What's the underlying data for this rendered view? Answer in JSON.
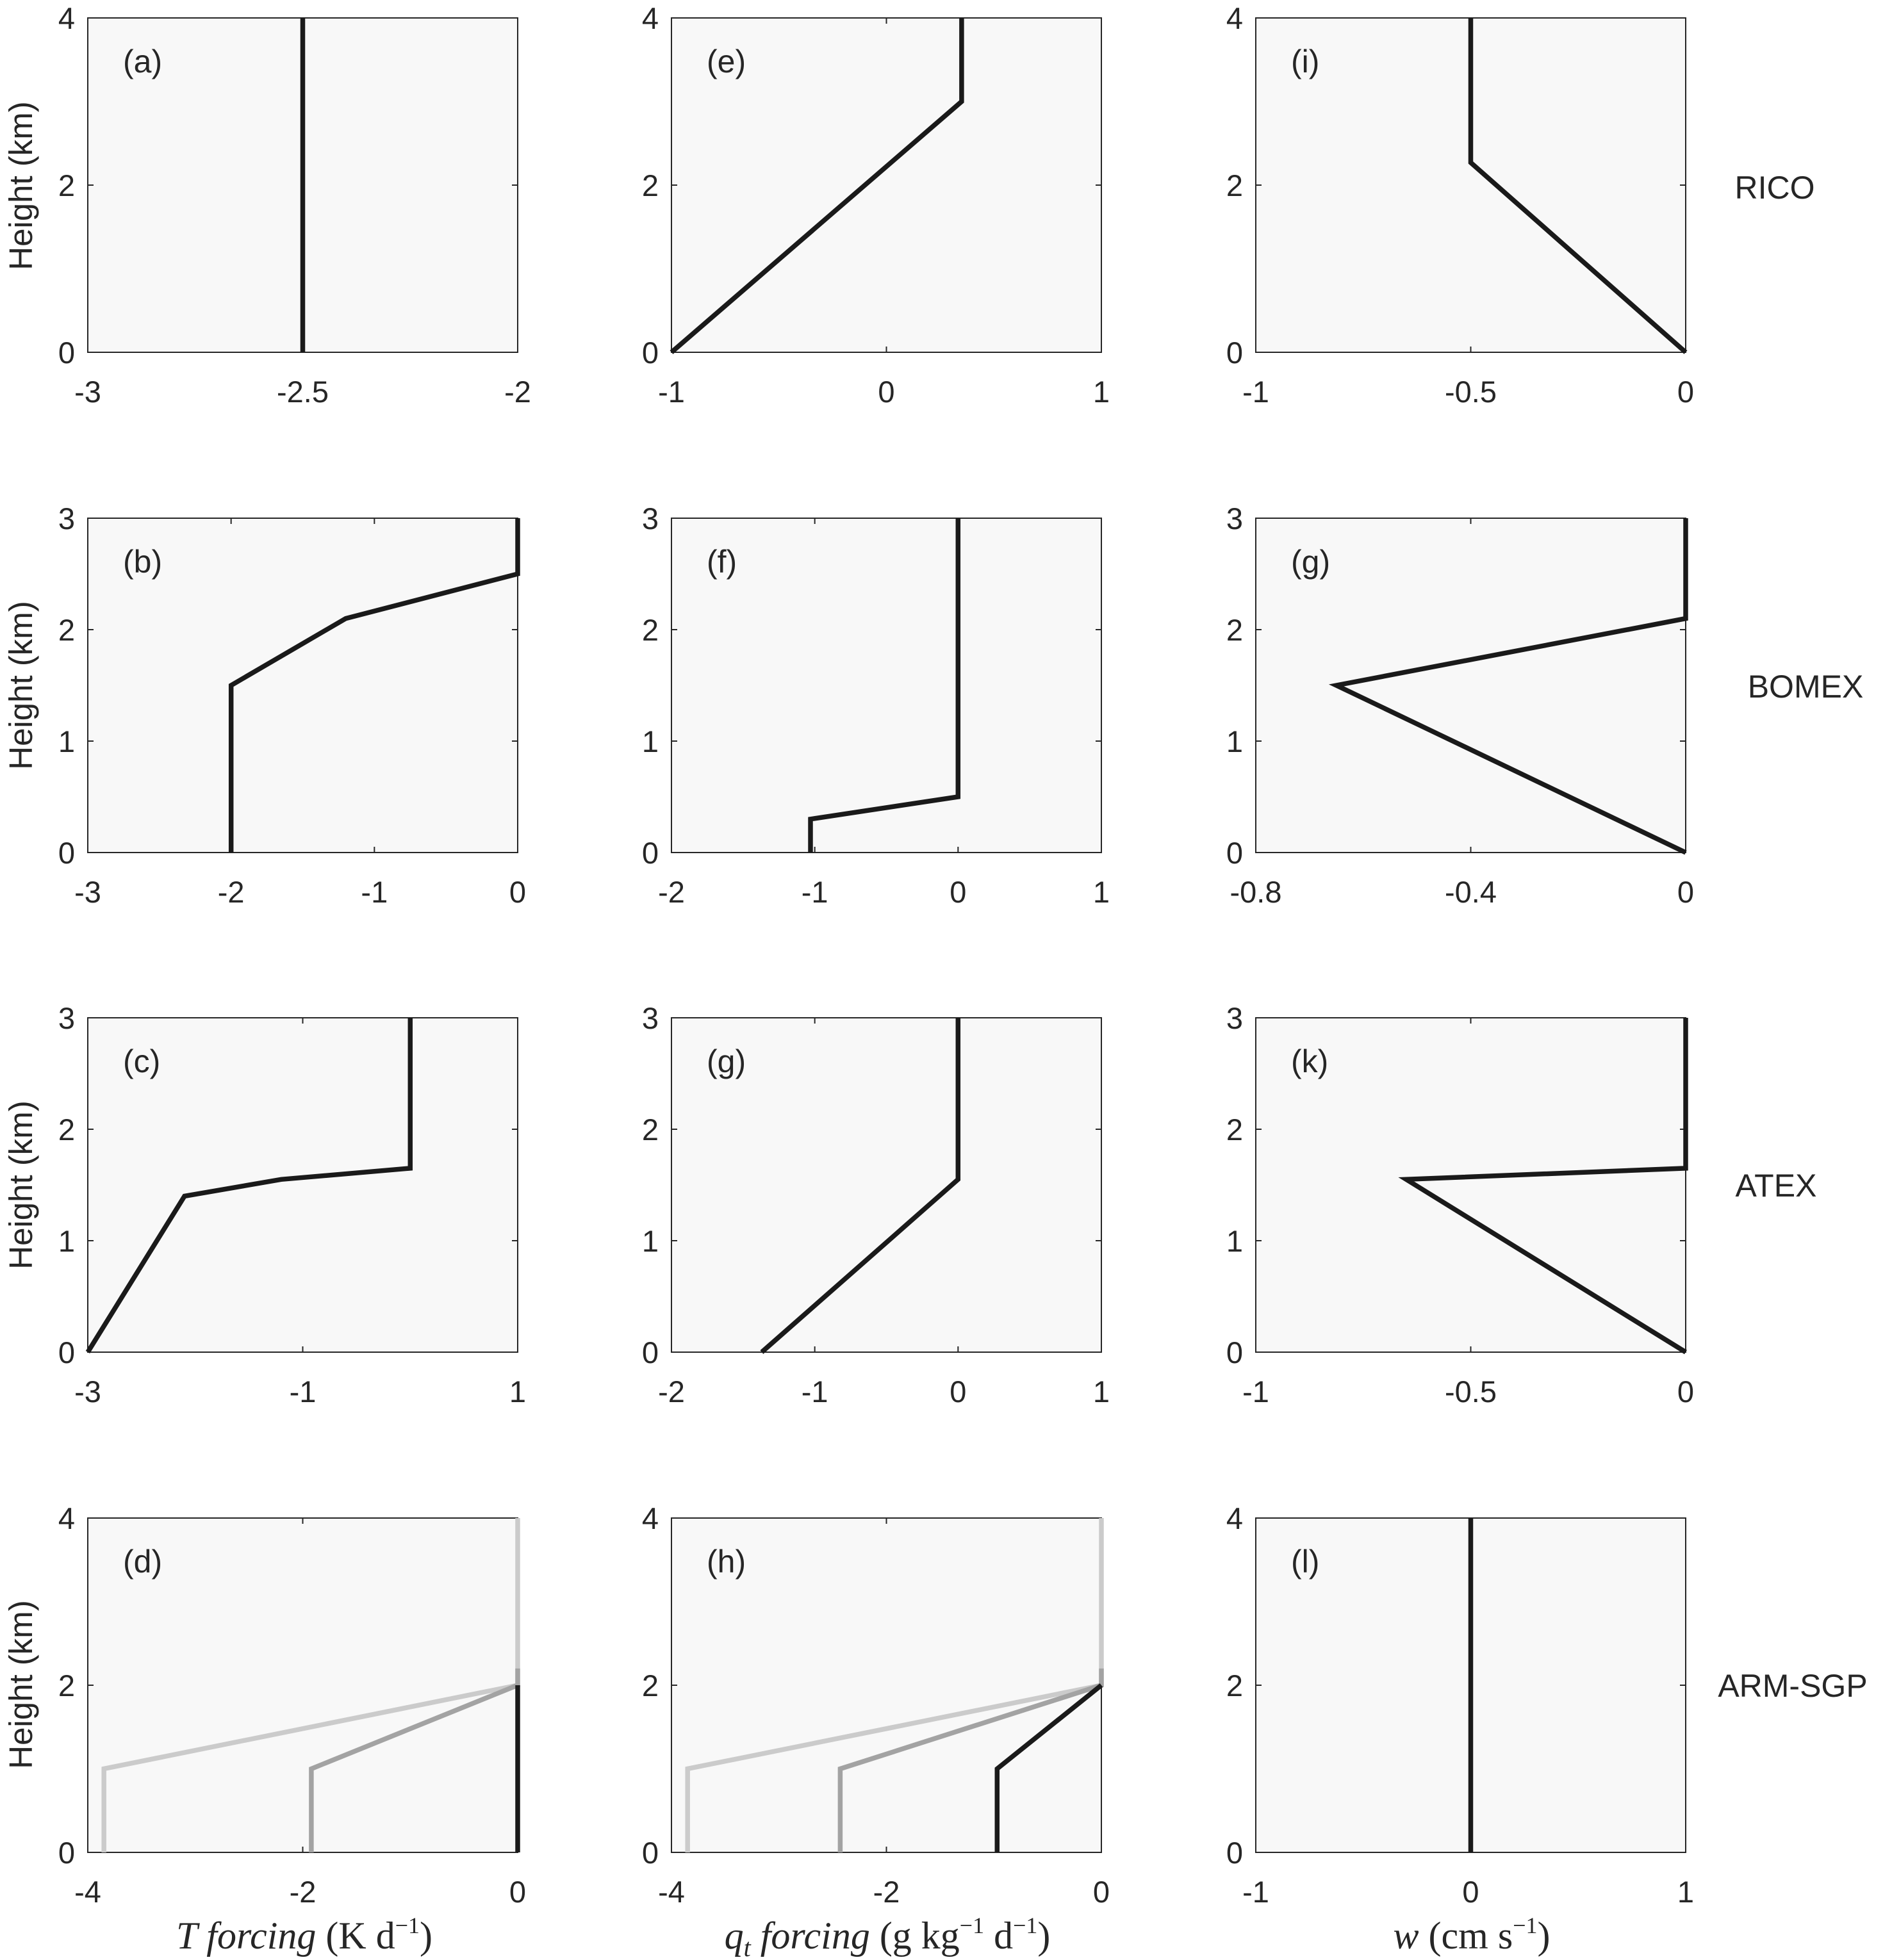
{
  "colors": {
    "axes_bg": "#f8f8f8",
    "axis": "#262626",
    "black": "#1a1a1a",
    "gray_mid": "#a3a3a3",
    "gray_light": "#cbcbcb"
  },
  "row_labels": [
    "RICO",
    "BOMEX",
    "ATEX",
    "ARM-SGP"
  ],
  "x_labels": [
    {
      "var": "T",
      "rest": " forcing",
      "paren": " (K d",
      "sup": "−1",
      "close": ")"
    },
    {
      "var": "q",
      "sub": "t",
      "rest": " forcing",
      "paren": " (g kg",
      "sup": "−1",
      "mid": " d",
      "sup2": "−1",
      "close": ")"
    },
    {
      "var": "w",
      "paren": " (cm s",
      "sup": "−1",
      "close": ")"
    }
  ],
  "ylabel": "Height (km)",
  "chart_data": [
    {
      "type": "line",
      "label": "(a)",
      "xlim": [
        -3,
        -2
      ],
      "ylim": [
        0,
        4
      ],
      "xticks": [
        -3,
        -2.5,
        -2
      ],
      "xtick_labels": [
        "-3",
        "-2.5",
        "-2"
      ],
      "yticks": [
        0,
        2,
        4
      ],
      "ytick_labels": [
        "0",
        "2",
        "4"
      ],
      "series": [
        {
          "color": "black",
          "x": [
            -2.5,
            -2.5
          ],
          "y": [
            0,
            4
          ]
        }
      ]
    },
    {
      "type": "line",
      "label": "(e)",
      "xlim": [
        -1,
        1
      ],
      "ylim": [
        0,
        4
      ],
      "xticks": [
        -1,
        0,
        1
      ],
      "xtick_labels": [
        "-1",
        "0",
        "1"
      ],
      "yticks": [
        0,
        2,
        4
      ],
      "ytick_labels": [
        "0",
        "2",
        "4"
      ],
      "series": [
        {
          "color": "black",
          "x": [
            -1,
            0.35,
            0.35
          ],
          "y": [
            0,
            3.0,
            4
          ]
        }
      ]
    },
    {
      "type": "line",
      "label": "(i)",
      "xlim": [
        -1,
        0
      ],
      "ylim": [
        0,
        4
      ],
      "xticks": [
        -1,
        -0.5,
        0
      ],
      "xtick_labels": [
        "-1",
        "-0.5",
        "0"
      ],
      "yticks": [
        0,
        2,
        4
      ],
      "ytick_labels": [
        "0",
        "2",
        "4"
      ],
      "series": [
        {
          "color": "black",
          "x": [
            0,
            -0.5,
            -0.5
          ],
          "y": [
            0,
            2.27,
            4
          ]
        }
      ]
    },
    {
      "type": "line",
      "label": "(b)",
      "xlim": [
        -3,
        0
      ],
      "ylim": [
        0,
        3
      ],
      "xticks": [
        -3,
        -2,
        -1,
        0
      ],
      "xtick_labels": [
        "-3",
        "-2",
        "-1",
        "0"
      ],
      "yticks": [
        0,
        1,
        2,
        3
      ],
      "ytick_labels": [
        "0",
        "1",
        "2",
        "3"
      ],
      "series": [
        {
          "color": "black",
          "x": [
            -2,
            -2,
            -1.2,
            0,
            0
          ],
          "y": [
            0,
            1.5,
            2.1,
            2.5,
            3
          ]
        }
      ]
    },
    {
      "type": "line",
      "label": "(f)",
      "xlim": [
        -2,
        1
      ],
      "ylim": [
        0,
        3
      ],
      "xticks": [
        -2,
        -1,
        0,
        1
      ],
      "xtick_labels": [
        "-2",
        "-1",
        "0",
        "1"
      ],
      "yticks": [
        0,
        1,
        2,
        3
      ],
      "ytick_labels": [
        "0",
        "1",
        "2",
        "3"
      ],
      "series": [
        {
          "color": "black",
          "x": [
            -1.03,
            -1.03,
            0,
            0
          ],
          "y": [
            0,
            0.3,
            0.5,
            3
          ]
        }
      ]
    },
    {
      "type": "line",
      "label": "(g)",
      "xlim": [
        -0.8,
        0
      ],
      "ylim": [
        0,
        3
      ],
      "xticks": [
        -0.8,
        -0.4,
        0
      ],
      "xtick_labels": [
        "-0.8",
        "-0.4",
        "0"
      ],
      "yticks": [
        0,
        1,
        2,
        3
      ],
      "ytick_labels": [
        "0",
        "1",
        "2",
        "3"
      ],
      "series": [
        {
          "color": "black",
          "x": [
            0,
            -0.65,
            0,
            0
          ],
          "y": [
            0,
            1.5,
            2.1,
            3
          ]
        }
      ]
    },
    {
      "type": "line",
      "label": "(c)",
      "xlim": [
        -3,
        1
      ],
      "ylim": [
        0,
        3
      ],
      "xticks": [
        -3,
        -1,
        1
      ],
      "xtick_labels": [
        "-3",
        "-1",
        "1"
      ],
      "yticks": [
        0,
        1,
        2,
        3
      ],
      "ytick_labels": [
        "0",
        "1",
        "2",
        "3"
      ],
      "series": [
        {
          "color": "black",
          "x": [
            -3,
            -2.1,
            -1.2,
            0,
            0
          ],
          "y": [
            0,
            1.4,
            1.55,
            1.65,
            3
          ]
        }
      ]
    },
    {
      "type": "line",
      "label": "(g)",
      "xlim": [
        -2,
        1
      ],
      "ylim": [
        0,
        3
      ],
      "xticks": [
        -2,
        -1,
        0,
        1
      ],
      "xtick_labels": [
        "-2",
        "-1",
        "0",
        "1"
      ],
      "yticks": [
        0,
        1,
        2,
        3
      ],
      "ytick_labels": [
        "0",
        "1",
        "2",
        "3"
      ],
      "series": [
        {
          "color": "black",
          "x": [
            -1.37,
            0,
            0
          ],
          "y": [
            0,
            1.55,
            3
          ]
        }
      ]
    },
    {
      "type": "line",
      "label": "(k)",
      "xlim": [
        -1,
        0
      ],
      "ylim": [
        0,
        3
      ],
      "xticks": [
        -1,
        -0.5,
        0
      ],
      "xtick_labels": [
        "-1",
        "-0.5",
        "0"
      ],
      "yticks": [
        0,
        1,
        2,
        3
      ],
      "ytick_labels": [
        "0",
        "1",
        "2",
        "3"
      ],
      "series": [
        {
          "color": "black",
          "x": [
            0,
            -0.65,
            0,
            0
          ],
          "y": [
            0,
            1.55,
            1.65,
            3
          ]
        }
      ]
    },
    {
      "type": "line",
      "label": "(d)",
      "xlim": [
        -4,
        0
      ],
      "ylim": [
        0,
        4
      ],
      "xticks": [
        -4,
        -2,
        0
      ],
      "xtick_labels": [
        "-4",
        "-2",
        "0"
      ],
      "yticks": [
        0,
        2,
        4
      ],
      "ytick_labels": [
        "0",
        "2",
        "4"
      ],
      "series": [
        {
          "color": "gray_light",
          "x": [
            -3.85,
            -3.85,
            0,
            0
          ],
          "y": [
            0,
            1,
            2,
            4
          ]
        },
        {
          "color": "gray_mid",
          "x": [
            -1.92,
            -1.92,
            0,
            0
          ],
          "y": [
            0,
            1,
            2,
            2.2
          ]
        },
        {
          "color": "black",
          "x": [
            0,
            0
          ],
          "y": [
            0,
            2
          ]
        }
      ]
    },
    {
      "type": "line",
      "label": "(h)",
      "xlim": [
        -4,
        0
      ],
      "ylim": [
        0,
        4
      ],
      "xticks": [
        -4,
        -2,
        0
      ],
      "xtick_labels": [
        "-4",
        "-2",
        "0"
      ],
      "yticks": [
        0,
        2,
        4
      ],
      "ytick_labels": [
        "0",
        "2",
        "4"
      ],
      "series": [
        {
          "color": "gray_light",
          "x": [
            -3.85,
            -3.85,
            0,
            0
          ],
          "y": [
            0,
            1,
            2,
            4
          ]
        },
        {
          "color": "gray_mid",
          "x": [
            -2.43,
            -2.43,
            0,
            0
          ],
          "y": [
            0,
            1,
            2,
            2.2
          ]
        },
        {
          "color": "black",
          "x": [
            -0.97,
            -0.97,
            0
          ],
          "y": [
            0,
            1,
            2
          ]
        }
      ]
    },
    {
      "type": "line",
      "label": "(l)",
      "xlim": [
        -1,
        1
      ],
      "ylim": [
        0,
        4
      ],
      "xticks": [
        -1,
        0,
        1
      ],
      "xtick_labels": [
        "-1",
        "0",
        "1"
      ],
      "yticks": [
        0,
        2,
        4
      ],
      "ytick_labels": [
        "0",
        "2",
        "4"
      ],
      "series": [
        {
          "color": "black",
          "x": [
            0,
            0
          ],
          "y": [
            0,
            4
          ]
        }
      ]
    }
  ]
}
